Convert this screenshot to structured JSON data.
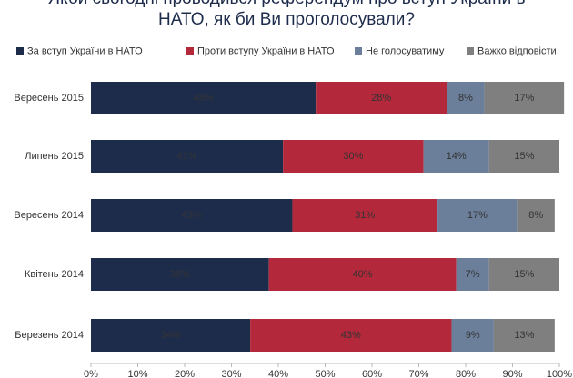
{
  "chart_data": {
    "type": "stacked-barh",
    "title": "Якби сьогодні проводився референдум про вступ України в НАТО, як би Ви проголосували?",
    "categories": [
      "Вересень 2015",
      "Липень 2015",
      "Вересень 2014",
      "Квітень 2014",
      "Березень 2014"
    ],
    "series": [
      {
        "name": "За вступ України в НАТО",
        "color": "#1e2c4c",
        "values": [
          48,
          41,
          43,
          38,
          34
        ],
        "value_labels": [
          "48%",
          "41%",
          "43%",
          "38%",
          "34%"
        ]
      },
      {
        "name": "Проти вступу України в НАТО",
        "color": "#b3283b",
        "values": [
          28,
          30,
          31,
          40,
          43
        ],
        "value_labels": [
          "28%",
          "30%",
          "31%",
          "40%",
          "43%"
        ]
      },
      {
        "name": "Не голосуватиму",
        "color": "#6b7e9a",
        "values": [
          8,
          14,
          17,
          7,
          9
        ],
        "value_labels": [
          "8%",
          "14%",
          "17%",
          "7%",
          "9%"
        ]
      },
      {
        "name": "Важко відповісти",
        "color": "#7f7f7f",
        "values": [
          17,
          15,
          8,
          15,
          13
        ],
        "value_labels": [
          "17%",
          "15%",
          "8%",
          "15%",
          "13%"
        ]
      }
    ],
    "xlim": [
      0,
      100
    ],
    "xticks": [
      {
        "value": 0,
        "label": "0%"
      },
      {
        "value": 10,
        "label": "10%"
      },
      {
        "value": 20,
        "label": "20%"
      },
      {
        "value": 30,
        "label": "30%"
      },
      {
        "value": 40,
        "label": "40%"
      },
      {
        "value": 50,
        "label": "50%"
      },
      {
        "value": 60,
        "label": "60%"
      },
      {
        "value": 70,
        "label": "70%"
      },
      {
        "value": 80,
        "label": "80%"
      },
      {
        "value": 90,
        "label": "90%"
      },
      {
        "value": 100,
        "label": "100%"
      }
    ]
  }
}
